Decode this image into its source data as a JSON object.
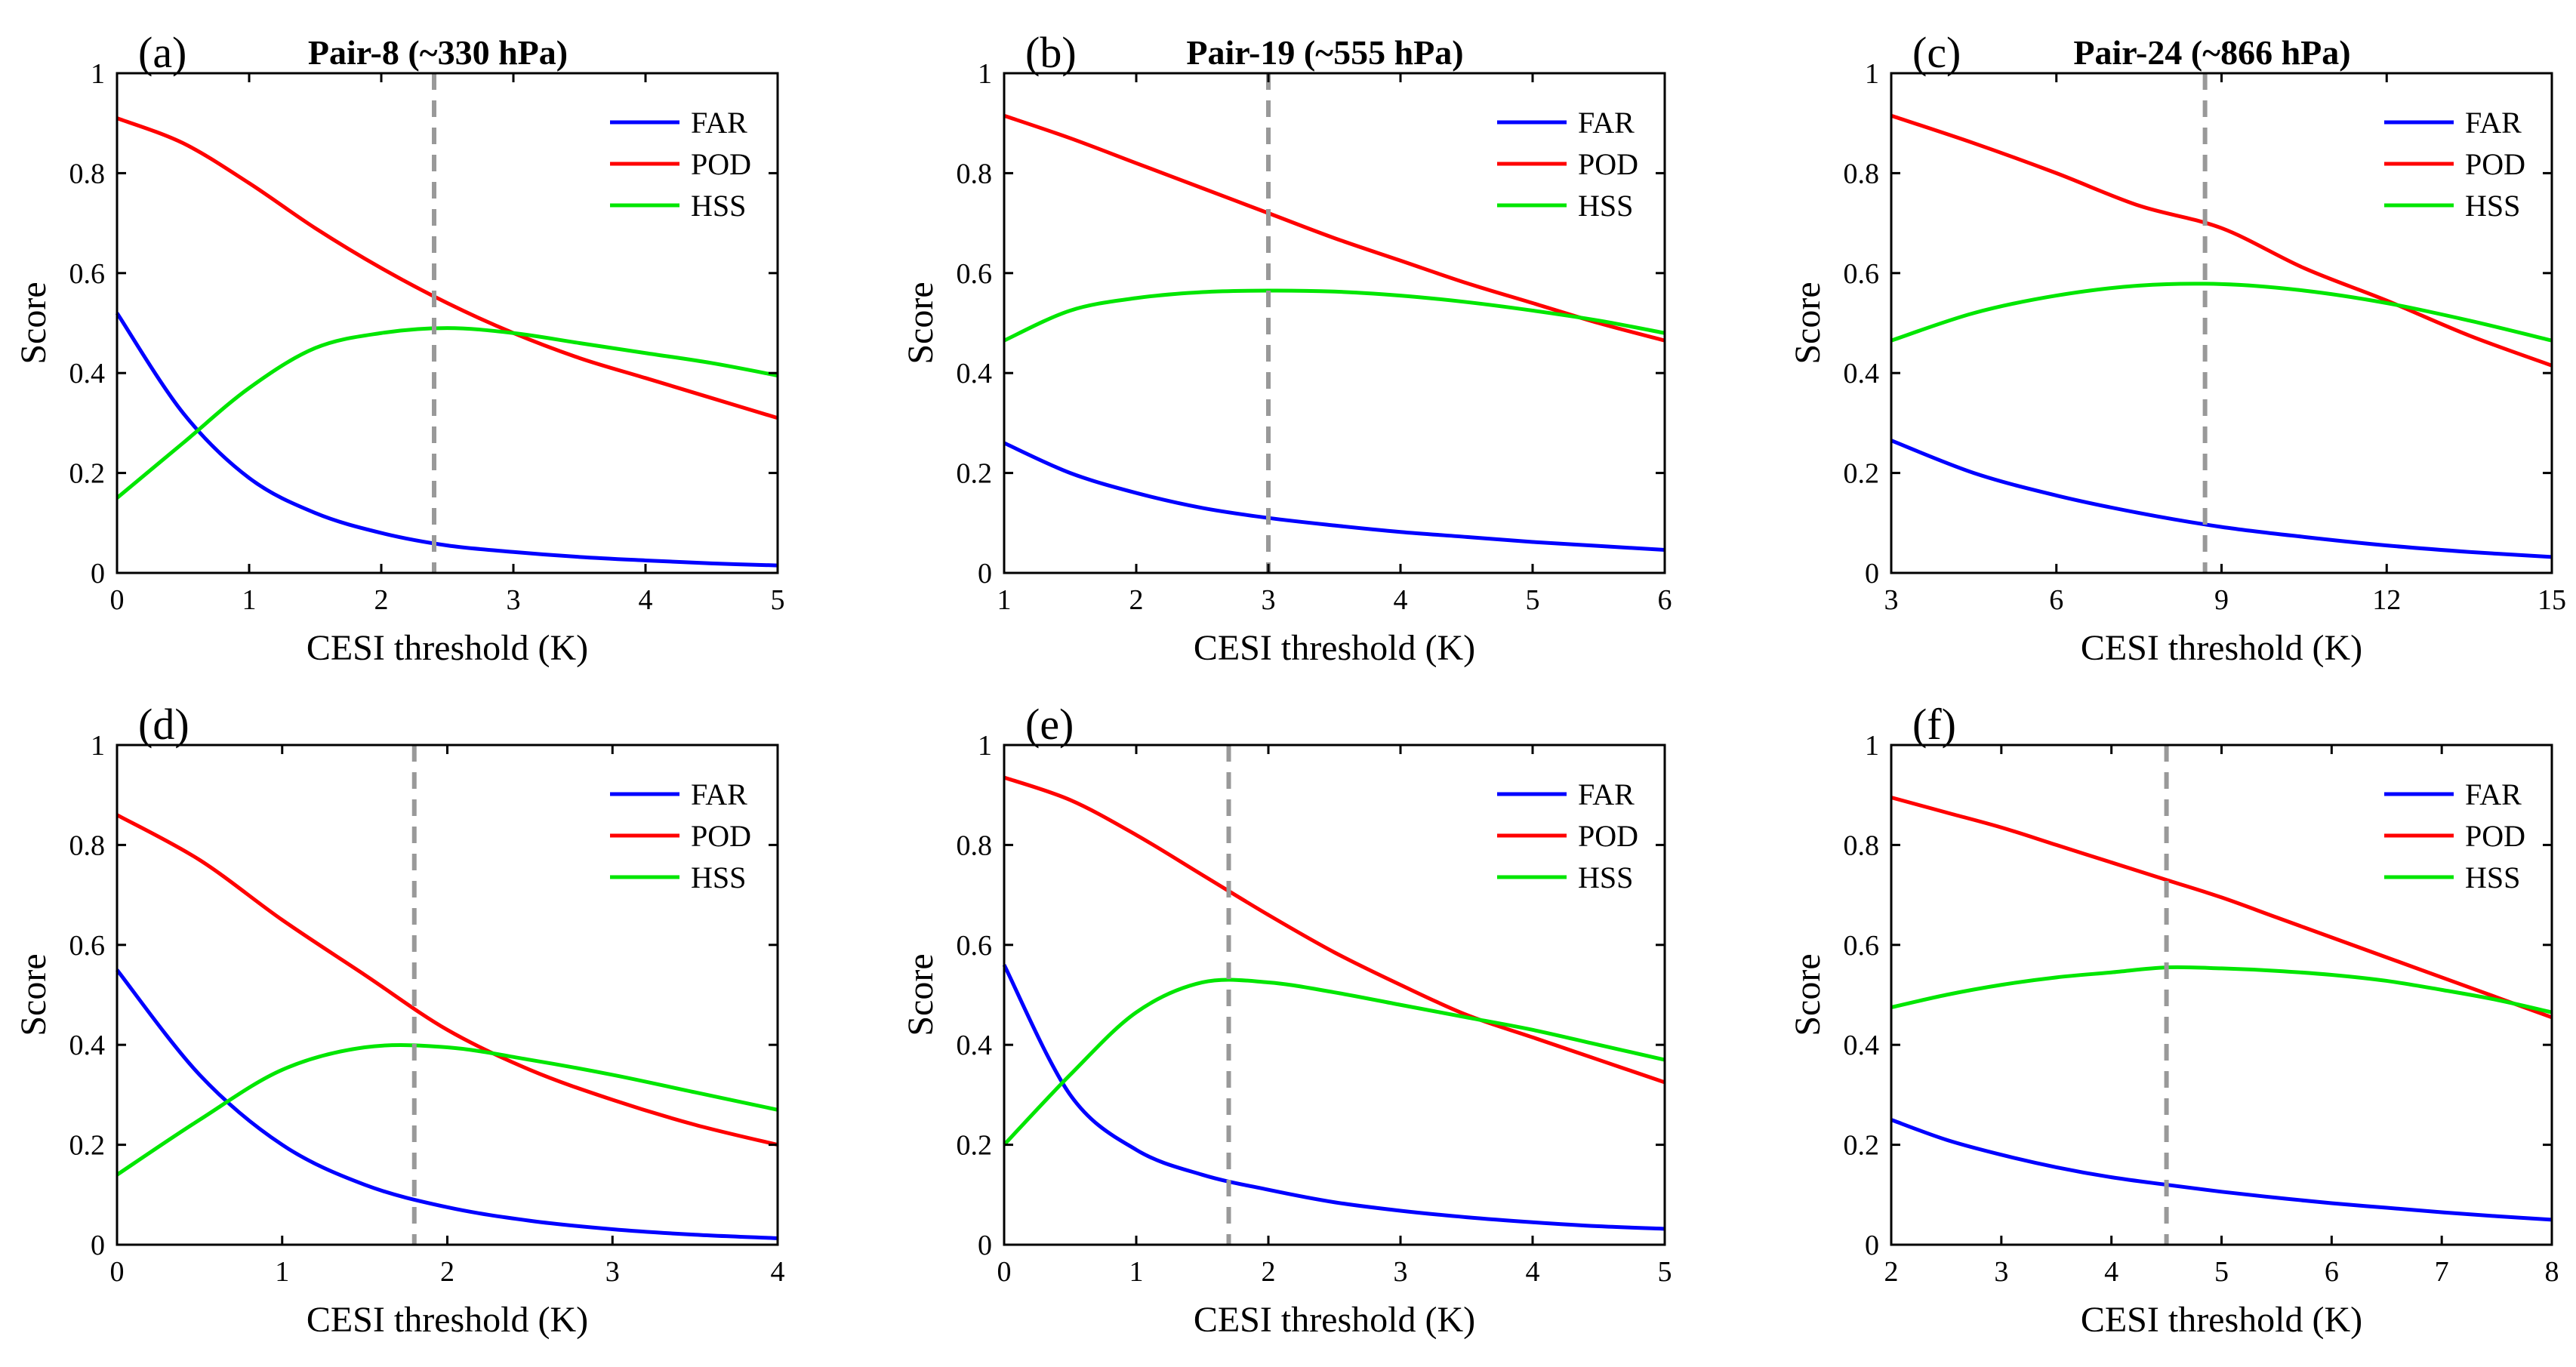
{
  "colors": {
    "FAR": "#0000ff",
    "POD": "#ff0000",
    "HSS": "#00e600",
    "threshold_line": "#999999"
  },
  "chart_data": [
    {
      "type": "line",
      "panel_label": "(a)",
      "title": "Pair-8 (~330 hPa)",
      "xlabel": "CESI threshold (K)",
      "ylabel": "Score",
      "xlim": [
        0,
        5
      ],
      "ylim": [
        0,
        1
      ],
      "xticks": [
        0,
        1,
        2,
        3,
        4,
        5
      ],
      "yticks": [
        0,
        0.2,
        0.4,
        0.6,
        0.8,
        1
      ],
      "legend_position": "top-right",
      "optimal_threshold": 2.4,
      "x": [
        0,
        0.5,
        1,
        1.5,
        2,
        2.5,
        3,
        3.5,
        4,
        4.5,
        5
      ],
      "series": [
        {
          "name": "FAR",
          "values": [
            0.52,
            0.32,
            0.19,
            0.12,
            0.08,
            0.055,
            0.042,
            0.032,
            0.025,
            0.019,
            0.015
          ]
        },
        {
          "name": "POD",
          "values": [
            0.91,
            0.86,
            0.78,
            0.69,
            0.61,
            0.54,
            0.48,
            0.43,
            0.39,
            0.35,
            0.31
          ]
        },
        {
          "name": "HSS",
          "values": [
            0.15,
            0.26,
            0.37,
            0.45,
            0.48,
            0.49,
            0.48,
            0.46,
            0.44,
            0.42,
            0.395
          ]
        }
      ]
    },
    {
      "type": "line",
      "panel_label": "(b)",
      "title": "Pair-19 (~555 hPa)",
      "xlabel": "CESI threshold (K)",
      "ylabel": "Score",
      "xlim": [
        1,
        6
      ],
      "ylim": [
        0,
        1
      ],
      "xticks": [
        1,
        2,
        3,
        4,
        5,
        6
      ],
      "yticks": [
        0,
        0.2,
        0.4,
        0.6,
        0.8,
        1
      ],
      "legend_position": "top-right",
      "optimal_threshold": 3,
      "x": [
        1,
        1.5,
        2,
        2.5,
        3,
        3.5,
        4,
        4.5,
        5,
        5.5,
        6
      ],
      "series": [
        {
          "name": "FAR",
          "values": [
            0.26,
            0.2,
            0.16,
            0.13,
            0.11,
            0.095,
            0.082,
            0.072,
            0.062,
            0.054,
            0.046
          ]
        },
        {
          "name": "POD",
          "values": [
            0.915,
            0.87,
            0.82,
            0.77,
            0.72,
            0.67,
            0.625,
            0.58,
            0.54,
            0.5,
            0.465
          ]
        },
        {
          "name": "HSS",
          "values": [
            0.465,
            0.525,
            0.55,
            0.562,
            0.565,
            0.563,
            0.555,
            0.542,
            0.525,
            0.505,
            0.48
          ]
        }
      ]
    },
    {
      "type": "line",
      "panel_label": "(c)",
      "title": "Pair-24 (~866 hPa)",
      "xlabel": "CESI threshold (K)",
      "ylabel": "Score",
      "xlim": [
        3,
        15
      ],
      "ylim": [
        0,
        1
      ],
      "xticks": [
        3,
        6,
        9,
        12,
        15
      ],
      "yticks": [
        0,
        0.2,
        0.4,
        0.6,
        0.8,
        1
      ],
      "legend_position": "top-right",
      "optimal_threshold": 8.7,
      "x": [
        3,
        4.5,
        6,
        7.5,
        9,
        10.5,
        12,
        13.5,
        15
      ],
      "series": [
        {
          "name": "FAR",
          "values": [
            0.265,
            0.2,
            0.155,
            0.12,
            0.092,
            0.072,
            0.055,
            0.042,
            0.032
          ]
        },
        {
          "name": "POD",
          "values": [
            0.915,
            0.86,
            0.8,
            0.735,
            0.69,
            0.61,
            0.545,
            0.475,
            0.415
          ]
        },
        {
          "name": "HSS",
          "values": [
            0.465,
            0.52,
            0.555,
            0.575,
            0.578,
            0.565,
            0.54,
            0.505,
            0.465
          ]
        }
      ]
    },
    {
      "type": "line",
      "panel_label": "(d)",
      "title": "",
      "xlabel": "CESI threshold (K)",
      "ylabel": "Score",
      "xlim": [
        0,
        4
      ],
      "ylim": [
        0,
        1
      ],
      "xticks": [
        0,
        1,
        2,
        3,
        4
      ],
      "yticks": [
        0,
        0.2,
        0.4,
        0.6,
        0.8,
        1
      ],
      "legend_position": "top-right",
      "optimal_threshold": 1.8,
      "x": [
        0,
        0.5,
        1,
        1.5,
        2,
        2.5,
        3,
        3.5,
        4
      ],
      "series": [
        {
          "name": "FAR",
          "values": [
            0.55,
            0.34,
            0.2,
            0.12,
            0.075,
            0.048,
            0.031,
            0.02,
            0.013
          ]
        },
        {
          "name": "POD",
          "values": [
            0.86,
            0.77,
            0.65,
            0.54,
            0.43,
            0.35,
            0.29,
            0.24,
            0.2
          ]
        },
        {
          "name": "HSS",
          "values": [
            0.14,
            0.25,
            0.35,
            0.395,
            0.395,
            0.37,
            0.34,
            0.305,
            0.27
          ]
        }
      ]
    },
    {
      "type": "line",
      "panel_label": "(e)",
      "title": "",
      "xlabel": "CESI threshold (K)",
      "ylabel": "Score",
      "xlim": [
        0,
        5
      ],
      "ylim": [
        0,
        1
      ],
      "xticks": [
        0,
        1,
        2,
        3,
        4,
        5
      ],
      "yticks": [
        0,
        0.2,
        0.4,
        0.6,
        0.8,
        1
      ],
      "legend_position": "top-right",
      "optimal_threshold": 1.7,
      "x": [
        0,
        0.5,
        1,
        1.5,
        2,
        2.5,
        3,
        3.5,
        4,
        4.5,
        5
      ],
      "series": [
        {
          "name": "FAR",
          "values": [
            0.56,
            0.3,
            0.19,
            0.14,
            0.11,
            0.085,
            0.068,
            0.055,
            0.045,
            0.037,
            0.032
          ]
        },
        {
          "name": "POD",
          "values": [
            0.935,
            0.89,
            0.82,
            0.74,
            0.66,
            0.585,
            0.52,
            0.46,
            0.415,
            0.37,
            0.325
          ]
        },
        {
          "name": "HSS",
          "values": [
            0.2,
            0.34,
            0.465,
            0.525,
            0.525,
            0.505,
            0.48,
            0.455,
            0.43,
            0.4,
            0.37
          ]
        }
      ]
    },
    {
      "type": "line",
      "panel_label": "(f)",
      "title": "",
      "xlabel": "CESI threshold (K)",
      "ylabel": "Score",
      "xlim": [
        2,
        8
      ],
      "ylim": [
        0,
        1
      ],
      "xticks": [
        2,
        3,
        4,
        5,
        6,
        7,
        8
      ],
      "yticks": [
        0,
        0.2,
        0.4,
        0.6,
        0.8,
        1
      ],
      "legend_position": "top-right",
      "optimal_threshold": 4.5,
      "x": [
        2,
        2.5,
        3,
        3.5,
        4,
        4.5,
        5,
        5.5,
        6,
        6.5,
        7,
        7.5,
        8
      ],
      "series": [
        {
          "name": "FAR",
          "values": [
            0.25,
            0.21,
            0.18,
            0.155,
            0.135,
            0.12,
            0.106,
            0.094,
            0.083,
            0.074,
            0.065,
            0.057,
            0.05
          ]
        },
        {
          "name": "POD",
          "values": [
            0.895,
            0.865,
            0.835,
            0.8,
            0.765,
            0.73,
            0.695,
            0.655,
            0.615,
            0.575,
            0.535,
            0.495,
            0.455
          ]
        },
        {
          "name": "HSS",
          "values": [
            0.475,
            0.5,
            0.52,
            0.535,
            0.545,
            0.555,
            0.553,
            0.548,
            0.54,
            0.528,
            0.51,
            0.49,
            0.465
          ]
        }
      ]
    }
  ]
}
